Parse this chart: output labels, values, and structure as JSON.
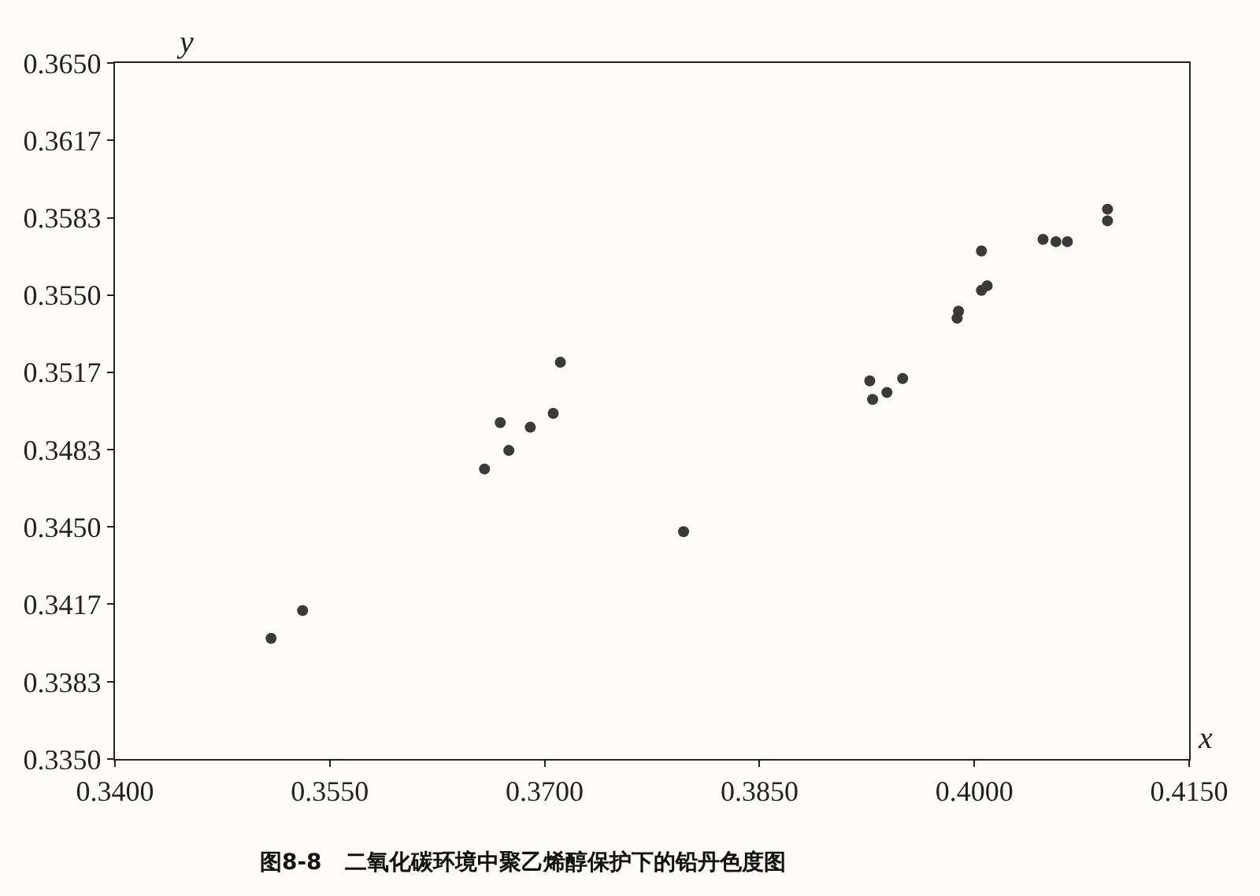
{
  "chart_data": {
    "type": "scatter",
    "title": "图8-8   二氧化碳环境中聚乙烯醇保护下的铅丹色度图",
    "xlabel": "x",
    "ylabel": "y",
    "x": [
      0.3509,
      0.3531,
      0.3658,
      0.3669,
      0.3675,
      0.369,
      0.3706,
      0.3711,
      0.3797,
      0.3927,
      0.3929,
      0.3939,
      0.395,
      0.3988,
      0.3989,
      0.4005,
      0.4009,
      0.4005,
      0.4048,
      0.4057,
      0.4065,
      0.4093,
      0.4093
    ],
    "values": [
      0.3402,
      0.3414,
      0.3475,
      0.3495,
      0.3483,
      0.3493,
      0.3499,
      0.3521,
      0.3448,
      0.3513,
      0.3505,
      0.3508,
      0.3514,
      0.354,
      0.3543,
      0.3569,
      0.3554,
      0.3552,
      0.3574,
      0.3573,
      0.3573,
      0.3587,
      0.3582
    ],
    "color": "#3a3a3a",
    "marker": "circle",
    "grid": false,
    "xlim": [
      0.34,
      0.415
    ],
    "xticks": [
      {
        "value": 0.34,
        "label": "0.3400"
      },
      {
        "value": 0.355,
        "label": "0.3550"
      },
      {
        "value": 0.37,
        "label": "0.3700"
      },
      {
        "value": 0.385,
        "label": "0.3850"
      },
      {
        "value": 0.4,
        "label": "0.4000"
      },
      {
        "value": 0.415,
        "label": "0.4150"
      }
    ],
    "ylim": [
      0.335,
      0.365
    ],
    "yticks": [
      {
        "value": 0.335,
        "label": "0.3350"
      },
      {
        "value": 0.33833,
        "label": "0.3383"
      },
      {
        "value": 0.34167,
        "label": "0.3417"
      },
      {
        "value": 0.345,
        "label": "0.3450"
      },
      {
        "value": 0.34833,
        "label": "0.3483"
      },
      {
        "value": 0.35167,
        "label": "0.3517"
      },
      {
        "value": 0.355,
        "label": "0.3550"
      },
      {
        "value": 0.35833,
        "label": "0.3583"
      },
      {
        "value": 0.36167,
        "label": "0.3617"
      },
      {
        "value": 0.365,
        "label": "0.3650"
      }
    ]
  }
}
